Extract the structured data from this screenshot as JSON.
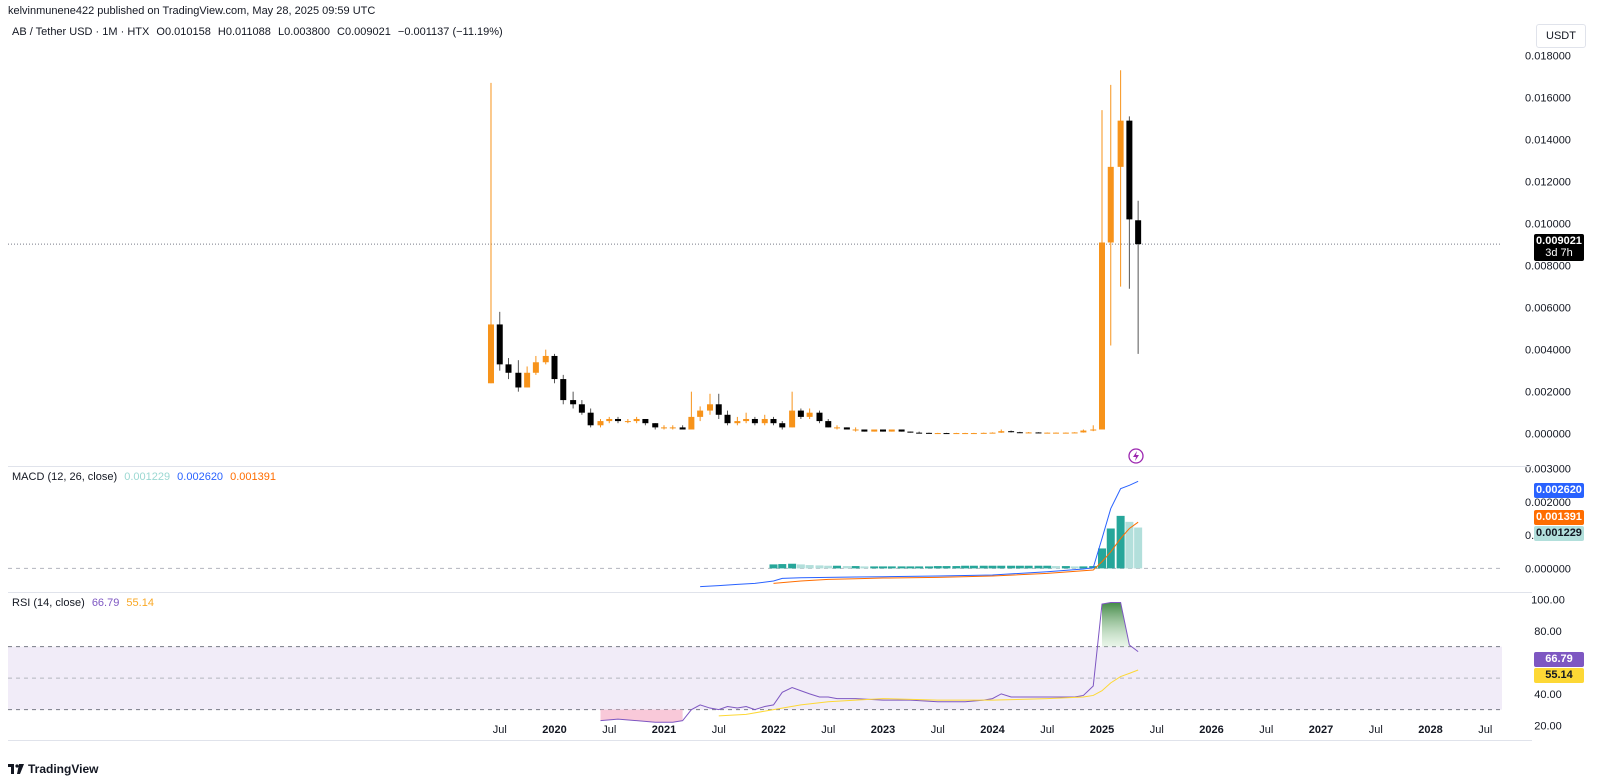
{
  "header": {
    "published_line": "kelvinmunene422 published on TradingView.com, May 28, 2025 09:59 UTC"
  },
  "symbol_legend": {
    "symbol": "AB / Tether USD · 1M · HTX",
    "open": "O0.010158",
    "high": "H0.011088",
    "low": "L0.003800",
    "close": "C0.009021",
    "change": "−0.001137 (−11.19%)"
  },
  "unit_label": "USDT",
  "last_price": {
    "value": "0.009021",
    "countdown": "3d 7h"
  },
  "macd_legend": {
    "name": "MACD (12, 26, close)",
    "hist": "0.001229",
    "macd": "0.002620",
    "signal": "0.001391"
  },
  "rsi_legend": {
    "name": "RSI (14, close)",
    "rsi": "66.79",
    "ma": "55.14"
  },
  "footer": {
    "brand": "TradingView"
  },
  "colors": {
    "up": "#f7931a",
    "down": "#000000",
    "macd": "#2962ff",
    "signal": "#ff6d00",
    "hist_strong": "#26a69a",
    "hist_weak": "#b2dfdb",
    "rsi": "#7e57c2",
    "rsi_ma": "#fdd835",
    "rsi_band": "#ede7f6"
  },
  "chart_data": [
    {
      "type": "candlestick",
      "title": "AB / Tether USD · 1M · HTX",
      "x_ticks": [
        "Jul",
        "2020",
        "Jul",
        "2021",
        "Jul",
        "2022",
        "Jul",
        "2023",
        "Jul",
        "2024",
        "Jul",
        "2025",
        "Jul",
        "2026",
        "Jul",
        "2027",
        "Jul",
        "2028",
        "Jul"
      ],
      "y_ticks": [
        "0.000000",
        "0.002000",
        "0.004000",
        "0.006000",
        "0.008000",
        "0.010000",
        "0.012000",
        "0.014000",
        "0.016000",
        "0.018000"
      ],
      "ylim": [
        -0.0003,
        0.0185
      ],
      "candles": [
        {
          "t": 2019.42,
          "o": 0.0024,
          "h": 0.0167,
          "l": 0.0024,
          "c": 0.0052
        },
        {
          "t": 2019.5,
          "o": 0.0052,
          "h": 0.0058,
          "l": 0.003,
          "c": 0.0033
        },
        {
          "t": 2019.58,
          "o": 0.0033,
          "h": 0.0036,
          "l": 0.0026,
          "c": 0.0029
        },
        {
          "t": 2019.67,
          "o": 0.0029,
          "h": 0.0035,
          "l": 0.002,
          "c": 0.0022
        },
        {
          "t": 2019.75,
          "o": 0.0022,
          "h": 0.0032,
          "l": 0.0022,
          "c": 0.0029
        },
        {
          "t": 2019.83,
          "o": 0.0029,
          "h": 0.0037,
          "l": 0.0028,
          "c": 0.0034
        },
        {
          "t": 2019.92,
          "o": 0.0034,
          "h": 0.004,
          "l": 0.0033,
          "c": 0.0037
        },
        {
          "t": 2020.0,
          "o": 0.0037,
          "h": 0.0038,
          "l": 0.0024,
          "c": 0.0026
        },
        {
          "t": 2020.08,
          "o": 0.0026,
          "h": 0.0028,
          "l": 0.0014,
          "c": 0.0016
        },
        {
          "t": 2020.17,
          "o": 0.0016,
          "h": 0.002,
          "l": 0.0012,
          "c": 0.0014
        },
        {
          "t": 2020.25,
          "o": 0.0014,
          "h": 0.0016,
          "l": 0.0009,
          "c": 0.001
        },
        {
          "t": 2020.33,
          "o": 0.001,
          "h": 0.0012,
          "l": 0.0003,
          "c": 0.0004
        },
        {
          "t": 2020.42,
          "o": 0.0004,
          "h": 0.0007,
          "l": 0.0003,
          "c": 0.0006
        },
        {
          "t": 2020.5,
          "o": 0.0006,
          "h": 0.0008,
          "l": 0.0005,
          "c": 0.0007
        },
        {
          "t": 2020.58,
          "o": 0.0007,
          "h": 0.0008,
          "l": 0.0005,
          "c": 0.0006
        },
        {
          "t": 2020.67,
          "o": 0.0006,
          "h": 0.0007,
          "l": 0.0005,
          "c": 0.0006
        },
        {
          "t": 2020.75,
          "o": 0.0006,
          "h": 0.0008,
          "l": 0.0005,
          "c": 0.0007
        },
        {
          "t": 2020.83,
          "o": 0.0007,
          "h": 0.0007,
          "l": 0.0004,
          "c": 0.0005
        },
        {
          "t": 2020.92,
          "o": 0.0005,
          "h": 0.0005,
          "l": 0.0002,
          "c": 0.0003
        },
        {
          "t": 2021.0,
          "o": 0.0003,
          "h": 0.0004,
          "l": 0.0002,
          "c": 0.0003
        },
        {
          "t": 2021.08,
          "o": 0.0003,
          "h": 0.0004,
          "l": 0.0002,
          "c": 0.0003
        },
        {
          "t": 2021.17,
          "o": 0.0003,
          "h": 0.0004,
          "l": 0.0002,
          "c": 0.0002
        },
        {
          "t": 2021.25,
          "o": 0.0002,
          "h": 0.002,
          "l": 0.0002,
          "c": 0.0008
        },
        {
          "t": 2021.33,
          "o": 0.0008,
          "h": 0.0013,
          "l": 0.0006,
          "c": 0.0011
        },
        {
          "t": 2021.42,
          "o": 0.0011,
          "h": 0.0019,
          "l": 0.0009,
          "c": 0.0014
        },
        {
          "t": 2021.5,
          "o": 0.0014,
          "h": 0.0019,
          "l": 0.0007,
          "c": 0.0009
        },
        {
          "t": 2021.58,
          "o": 0.0009,
          "h": 0.0011,
          "l": 0.0004,
          "c": 0.0005
        },
        {
          "t": 2021.67,
          "o": 0.0005,
          "h": 0.0008,
          "l": 0.0004,
          "c": 0.0006
        },
        {
          "t": 2021.75,
          "o": 0.0006,
          "h": 0.001,
          "l": 0.0005,
          "c": 0.0007
        },
        {
          "t": 2021.83,
          "o": 0.0007,
          "h": 0.0008,
          "l": 0.0004,
          "c": 0.0005
        },
        {
          "t": 2021.92,
          "o": 0.0005,
          "h": 0.0009,
          "l": 0.0004,
          "c": 0.0007
        },
        {
          "t": 2022.0,
          "o": 0.0007,
          "h": 0.0008,
          "l": 0.0004,
          "c": 0.0005
        },
        {
          "t": 2022.08,
          "o": 0.0005,
          "h": 0.0006,
          "l": 0.0002,
          "c": 0.0003
        },
        {
          "t": 2022.17,
          "o": 0.0003,
          "h": 0.002,
          "l": 0.0003,
          "c": 0.0011
        },
        {
          "t": 2022.25,
          "o": 0.0011,
          "h": 0.0012,
          "l": 0.0007,
          "c": 0.0008
        },
        {
          "t": 2022.33,
          "o": 0.0008,
          "h": 0.0012,
          "l": 0.0007,
          "c": 0.001
        },
        {
          "t": 2022.42,
          "o": 0.001,
          "h": 0.0011,
          "l": 0.0005,
          "c": 0.0006
        },
        {
          "t": 2022.5,
          "o": 0.0006,
          "h": 0.0007,
          "l": 0.0003,
          "c": 0.0003
        },
        {
          "t": 2022.58,
          "o": 0.0003,
          "h": 0.0004,
          "l": 0.0002,
          "c": 0.0003
        },
        {
          "t": 2022.67,
          "o": 0.0003,
          "h": 0.0003,
          "l": 0.0002,
          "c": 0.0002
        },
        {
          "t": 2022.75,
          "o": 0.0002,
          "h": 0.0003,
          "l": 0.0001,
          "c": 0.0002
        },
        {
          "t": 2022.83,
          "o": 0.0002,
          "h": 0.0002,
          "l": 0.0001,
          "c": 0.0001
        },
        {
          "t": 2022.92,
          "o": 0.0001,
          "h": 0.0002,
          "l": 0.0001,
          "c": 0.0002
        },
        {
          "t": 2023.0,
          "o": 0.0002,
          "h": 0.0002,
          "l": 0.0001,
          "c": 0.0001
        },
        {
          "t": 2023.08,
          "o": 0.0001,
          "h": 0.0002,
          "l": 0.0001,
          "c": 0.0002
        },
        {
          "t": 2023.17,
          "o": 0.0002,
          "h": 0.0002,
          "l": 0.0001,
          "c": 0.0001
        },
        {
          "t": 2023.25,
          "o": 0.0001,
          "h": 0.0001,
          "l": 5e-05,
          "c": 5e-05
        },
        {
          "t": 2023.33,
          "o": 5e-05,
          "h": 0.0001,
          "l": 3e-05,
          "c": 4e-05
        },
        {
          "t": 2023.42,
          "o": 4e-05,
          "h": 5e-05,
          "l": 2e-05,
          "c": 3e-05
        },
        {
          "t": 2023.5,
          "o": 3e-05,
          "h": 4e-05,
          "l": 2e-05,
          "c": 3e-05
        },
        {
          "t": 2023.58,
          "o": 3e-05,
          "h": 4e-05,
          "l": 2e-05,
          "c": 2e-05
        },
        {
          "t": 2023.67,
          "o": 2e-05,
          "h": 4e-05,
          "l": 2e-05,
          "c": 3e-05
        },
        {
          "t": 2023.75,
          "o": 3e-05,
          "h": 4e-05,
          "l": 2e-05,
          "c": 3e-05
        },
        {
          "t": 2023.83,
          "o": 3e-05,
          "h": 4e-05,
          "l": 2e-05,
          "c": 3e-05
        },
        {
          "t": 2023.92,
          "o": 3e-05,
          "h": 5e-05,
          "l": 2e-05,
          "c": 4e-05
        },
        {
          "t": 2024.0,
          "o": 4e-05,
          "h": 6e-05,
          "l": 3e-05,
          "c": 5e-05
        },
        {
          "t": 2024.08,
          "o": 5e-05,
          "h": 0.0002,
          "l": 4e-05,
          "c": 0.00012
        },
        {
          "t": 2024.17,
          "o": 0.00012,
          "h": 0.00015,
          "l": 6e-05,
          "c": 7e-05
        },
        {
          "t": 2024.25,
          "o": 7e-05,
          "h": 9e-05,
          "l": 5e-05,
          "c": 6e-05
        },
        {
          "t": 2024.33,
          "o": 6e-05,
          "h": 8e-05,
          "l": 5e-05,
          "c": 6e-05
        },
        {
          "t": 2024.42,
          "o": 6e-05,
          "h": 7e-05,
          "l": 4e-05,
          "c": 5e-05
        },
        {
          "t": 2024.5,
          "o": 5e-05,
          "h": 6e-05,
          "l": 4e-05,
          "c": 5e-05
        },
        {
          "t": 2024.58,
          "o": 5e-05,
          "h": 6e-05,
          "l": 4e-05,
          "c": 5e-05
        },
        {
          "t": 2024.67,
          "o": 5e-05,
          "h": 6e-05,
          "l": 4e-05,
          "c": 5e-05
        },
        {
          "t": 2024.75,
          "o": 5e-05,
          "h": 7e-05,
          "l": 4e-05,
          "c": 6e-05
        },
        {
          "t": 2024.83,
          "o": 6e-05,
          "h": 0.0002,
          "l": 5e-05,
          "c": 0.00015
        },
        {
          "t": 2024.92,
          "o": 0.00015,
          "h": 0.0004,
          "l": 0.00012,
          "c": 0.0002
        },
        {
          "t": 2025.0,
          "o": 0.0002,
          "h": 0.0154,
          "l": 0.0002,
          "c": 0.0091
        },
        {
          "t": 2025.08,
          "o": 0.0091,
          "h": 0.0166,
          "l": 0.0042,
          "c": 0.0127
        },
        {
          "t": 2025.17,
          "o": 0.0127,
          "h": 0.0173,
          "l": 0.007,
          "c": 0.0149
        },
        {
          "t": 2025.25,
          "o": 0.0149,
          "h": 0.0151,
          "l": 0.0069,
          "c": 0.0102
        },
        {
          "t": 2025.33,
          "o": 0.010158,
          "h": 0.011088,
          "l": 0.0038,
          "c": 0.009021
        }
      ]
    },
    {
      "type": "line",
      "title": "MACD (12, 26, close)",
      "y_ticks": [
        "0.000000",
        "0.001000",
        "0.002000",
        "0.003000"
      ],
      "ylim": [
        -0.00065,
        0.00305
      ],
      "series": [
        {
          "name": "MACD",
          "x": [
            2021.33,
            2021.5,
            2021.67,
            2021.83,
            2022.0,
            2022.08,
            2022.25,
            2022.5,
            2022.75,
            2023.0,
            2023.5,
            2024.0,
            2024.5,
            2024.83,
            2024.92,
            2025.0,
            2025.08,
            2025.17,
            2025.25,
            2025.33
          ],
          "values": [
            -0.00055,
            -0.00052,
            -0.00048,
            -0.00045,
            -0.00038,
            -0.0003,
            -0.00028,
            -0.00027,
            -0.00026,
            -0.00025,
            -0.00023,
            -0.0002,
            -0.0001,
            -2e-05,
            2e-05,
            0.0009,
            0.0018,
            0.0024,
            0.0025,
            0.00262
          ]
        },
        {
          "name": "Signal",
          "x": [
            2022.0,
            2022.25,
            2022.5,
            2022.75,
            2023.0,
            2023.5,
            2024.0,
            2024.5,
            2024.92,
            2025.0,
            2025.08,
            2025.17,
            2025.25,
            2025.33
          ],
          "values": [
            -0.00045,
            -0.00038,
            -0.00033,
            -0.00031,
            -0.00029,
            -0.00027,
            -0.00023,
            -0.00015,
            -5e-05,
            0.0002,
            0.0005,
            0.0009,
            0.0012,
            0.00139
          ]
        }
      ],
      "histogram": {
        "x": [
          2022.0,
          2022.08,
          2022.17,
          2022.25,
          2022.33,
          2022.42,
          2022.5,
          2022.58,
          2022.67,
          2022.75,
          2022.83,
          2022.92,
          2023.0,
          2023.08,
          2023.17,
          2023.25,
          2023.33,
          2023.42,
          2023.5,
          2023.58,
          2023.67,
          2023.75,
          2023.83,
          2023.92,
          2024.0,
          2024.08,
          2024.17,
          2024.25,
          2024.33,
          2024.42,
          2024.5,
          2024.58,
          2024.67,
          2024.75,
          2024.83,
          2024.92,
          2025.0,
          2025.08,
          2025.17,
          2025.25,
          2025.33
        ],
        "values": [
          0.00012,
          0.00013,
          0.00014,
          0.00012,
          0.0001,
          9e-05,
          8e-05,
          8e-05,
          7e-05,
          7e-05,
          6e-05,
          6e-05,
          6e-05,
          6e-05,
          6e-05,
          6e-05,
          6e-05,
          6e-05,
          7e-05,
          7e-05,
          7e-05,
          8e-05,
          8e-05,
          8e-05,
          8e-05,
          8e-05,
          8e-05,
          8e-05,
          8e-05,
          8e-05,
          8e-05,
          7e-05,
          7e-05,
          6e-05,
          6e-05,
          7e-05,
          0.0006,
          0.0012,
          0.00158,
          0.0014,
          0.001229
        ]
      }
    },
    {
      "type": "line",
      "title": "RSI (14, close)",
      "y_ticks": [
        "20.00",
        "40.00",
        "60.00",
        "80.00",
        "100.00"
      ],
      "ylim": [
        12,
        104
      ],
      "bands": [
        30,
        50,
        70
      ],
      "series": [
        {
          "name": "RSI",
          "x": [
            2020.42,
            2020.58,
            2020.75,
            2020.92,
            2021.0,
            2021.08,
            2021.17,
            2021.25,
            2021.33,
            2021.42,
            2021.5,
            2021.58,
            2021.67,
            2021.75,
            2021.83,
            2021.92,
            2022.0,
            2022.08,
            2022.17,
            2022.25,
            2022.33,
            2022.42,
            2022.5,
            2022.58,
            2022.67,
            2022.75,
            2023.0,
            2023.25,
            2023.5,
            2023.75,
            2023.92,
            2024.0,
            2024.08,
            2024.17,
            2024.25,
            2024.5,
            2024.75,
            2024.83,
            2024.92,
            2025.0,
            2025.08,
            2025.17,
            2025.25,
            2025.33
          ],
          "values": [
            23,
            24,
            23,
            22,
            22,
            22,
            23,
            30,
            33,
            31,
            30,
            32,
            31,
            32,
            30,
            32,
            33,
            41,
            44,
            42,
            40,
            38,
            38,
            37,
            37,
            37,
            36,
            36,
            35,
            35,
            36,
            37,
            40,
            38,
            38,
            38,
            38,
            39,
            45,
            97,
            98,
            98,
            71,
            66.79
          ]
        },
        {
          "name": "RSI MA",
          "x": [
            2021.5,
            2021.75,
            2022.0,
            2022.25,
            2022.5,
            2022.75,
            2023.0,
            2023.5,
            2024.0,
            2024.5,
            2024.83,
            2024.92,
            2025.0,
            2025.08,
            2025.17,
            2025.25,
            2025.33
          ],
          "values": [
            26,
            27,
            30,
            33,
            35,
            36,
            37,
            36,
            36,
            37,
            38,
            39,
            42,
            47,
            51,
            53,
            55.14
          ]
        }
      ]
    }
  ]
}
